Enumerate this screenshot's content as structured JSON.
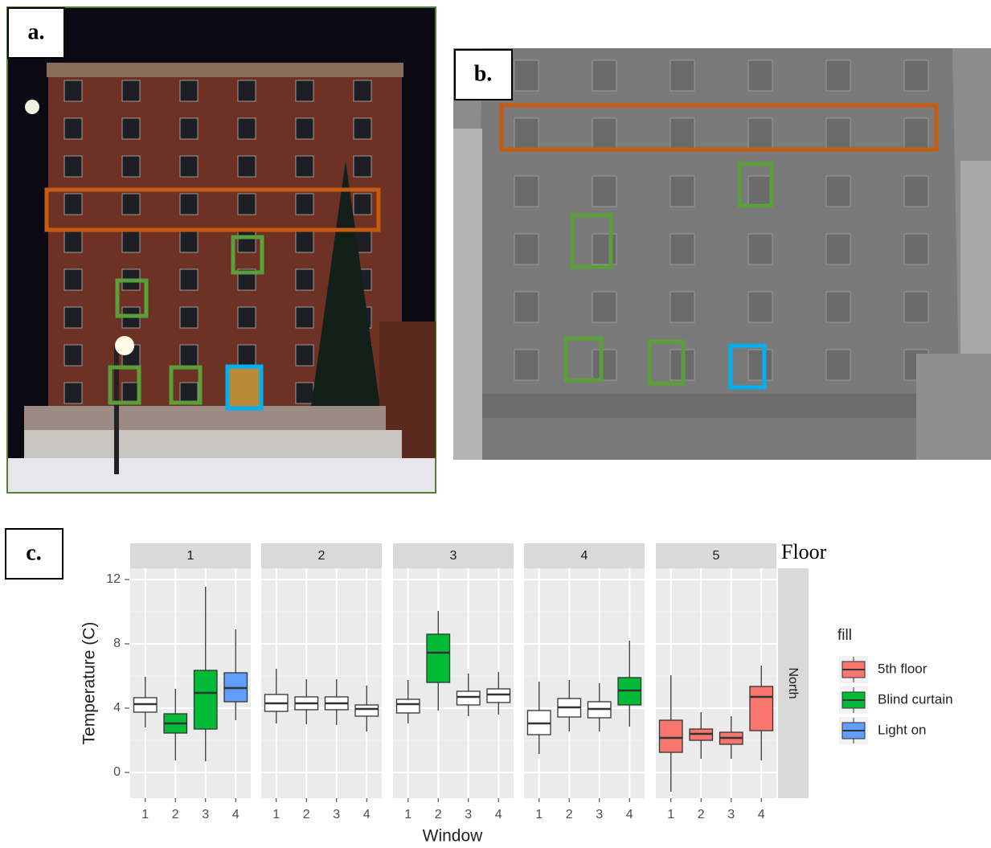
{
  "panel_labels": [
    "a.",
    "b.",
    "c."
  ],
  "chart_data": {
    "type": "boxplot",
    "y_label": "Temperature (C)",
    "x_label": "Window",
    "facet_title": "Floor",
    "row_strip": "North",
    "categories": [
      "1",
      "2",
      "3",
      "4"
    ],
    "ylim": [
      -1.6,
      12.7
    ],
    "yticks": [
      0,
      4,
      8,
      12
    ],
    "minor_yticks": [
      2,
      6,
      10
    ],
    "grid": true,
    "legend": {
      "title": "fill",
      "position": "right",
      "entries": [
        {
          "name": "5th floor",
          "color": "#F8766D"
        },
        {
          "name": "Blind curtain",
          "color": "#00BA38"
        },
        {
          "name": "Light on",
          "color": "#619CFF"
        }
      ]
    },
    "facets": [
      {
        "label": "1",
        "boxes": [
          {
            "color": "#FFFFFF",
            "min": 2.8,
            "q1": 3.75,
            "median": 4.25,
            "q3": 4.65,
            "max": 5.95
          },
          {
            "color": "#00BA38",
            "min": 0.75,
            "q1": 2.45,
            "median": 3.05,
            "q3": 3.65,
            "max": 5.2
          },
          {
            "color": "#00BA38",
            "min": 0.7,
            "q1": 2.7,
            "median": 4.95,
            "q3": 6.35,
            "max": 11.55
          },
          {
            "color": "#619CFF",
            "min": 3.25,
            "q1": 4.4,
            "median": 5.25,
            "q3": 6.2,
            "max": 8.9
          }
        ]
      },
      {
        "label": "2",
        "boxes": [
          {
            "color": "#FFFFFF",
            "min": 3.05,
            "q1": 3.8,
            "median": 4.3,
            "q3": 4.85,
            "max": 6.45
          },
          {
            "color": "#FFFFFF",
            "min": 3.0,
            "q1": 3.9,
            "median": 4.3,
            "q3": 4.7,
            "max": 5.8
          },
          {
            "color": "#FFFFFF",
            "min": 2.95,
            "q1": 3.9,
            "median": 4.3,
            "q3": 4.7,
            "max": 5.8
          },
          {
            "color": "#FFFFFF",
            "min": 2.55,
            "q1": 3.5,
            "median": 3.95,
            "q3": 4.2,
            "max": 5.4
          }
        ]
      },
      {
        "label": "3",
        "boxes": [
          {
            "color": "#FFFFFF",
            "min": 3.05,
            "q1": 3.7,
            "median": 4.25,
            "q3": 4.55,
            "max": 5.75
          },
          {
            "color": "#00BA38",
            "min": 3.85,
            "q1": 5.6,
            "median": 7.45,
            "q3": 8.6,
            "max": 10.05
          },
          {
            "color": "#FFFFFF",
            "min": 3.5,
            "q1": 4.2,
            "median": 4.7,
            "q3": 5.05,
            "max": 6.15
          },
          {
            "color": "#FFFFFF",
            "min": 3.6,
            "q1": 4.35,
            "median": 4.85,
            "q3": 5.2,
            "max": 6.25
          }
        ]
      },
      {
        "label": "4",
        "boxes": [
          {
            "color": "#FFFFFF",
            "min": 1.15,
            "q1": 2.35,
            "median": 3.05,
            "q3": 3.85,
            "max": 5.65
          },
          {
            "color": "#FFFFFF",
            "min": 2.55,
            "q1": 3.45,
            "median": 4.05,
            "q3": 4.6,
            "max": 5.75
          },
          {
            "color": "#FFFFFF",
            "min": 2.55,
            "q1": 3.4,
            "median": 3.95,
            "q3": 4.4,
            "max": 5.55
          },
          {
            "color": "#00BA38",
            "min": 2.85,
            "q1": 4.2,
            "median": 5.1,
            "q3": 5.9,
            "max": 8.2
          }
        ]
      },
      {
        "label": "5",
        "boxes": [
          {
            "color": "#F8766D",
            "min": -1.2,
            "q1": 1.25,
            "median": 2.15,
            "q3": 3.25,
            "max": 6.05
          },
          {
            "color": "#F8766D",
            "min": 0.85,
            "q1": 2.0,
            "median": 2.4,
            "q3": 2.7,
            "max": 3.75
          },
          {
            "color": "#F8766D",
            "min": 0.85,
            "q1": 1.75,
            "median": 2.15,
            "q3": 2.5,
            "max": 3.5
          },
          {
            "color": "#F8766D",
            "min": 0.75,
            "q1": 2.6,
            "median": 4.7,
            "q3": 5.35,
            "max": 6.65
          }
        ]
      }
    ]
  }
}
